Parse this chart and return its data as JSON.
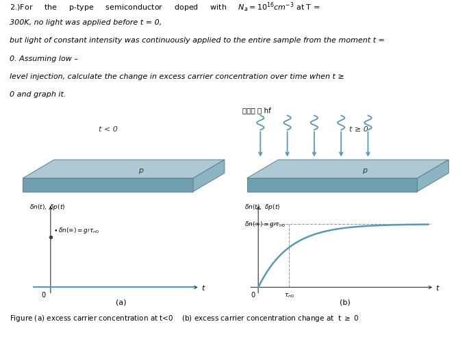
{
  "panel_bg": "#cdd3d6",
  "slab_top_color": "#aec8d4",
  "slab_front_color": "#6fa0b0",
  "slab_right_color": "#8cb5c4",
  "slab_edge_color": "#5a8090",
  "curve_color": "#5599bb",
  "axis_color": "#444444",
  "arrow_color": "#5599bb",
  "dashed_color": "#999999",
  "text_color": "#333333",
  "korean_text": "균일한 빛 hf",
  "label_t_lt0": "t < 0",
  "label_t_ge0": "t ≥ 0",
  "caption_a": "(a)",
  "caption_b": "(b)",
  "figure_caption_1": "Figure (a) excess carrier concentration at t<0",
  "figure_caption_2": "(b) excess carrier concentration change at  t ≥ 0"
}
